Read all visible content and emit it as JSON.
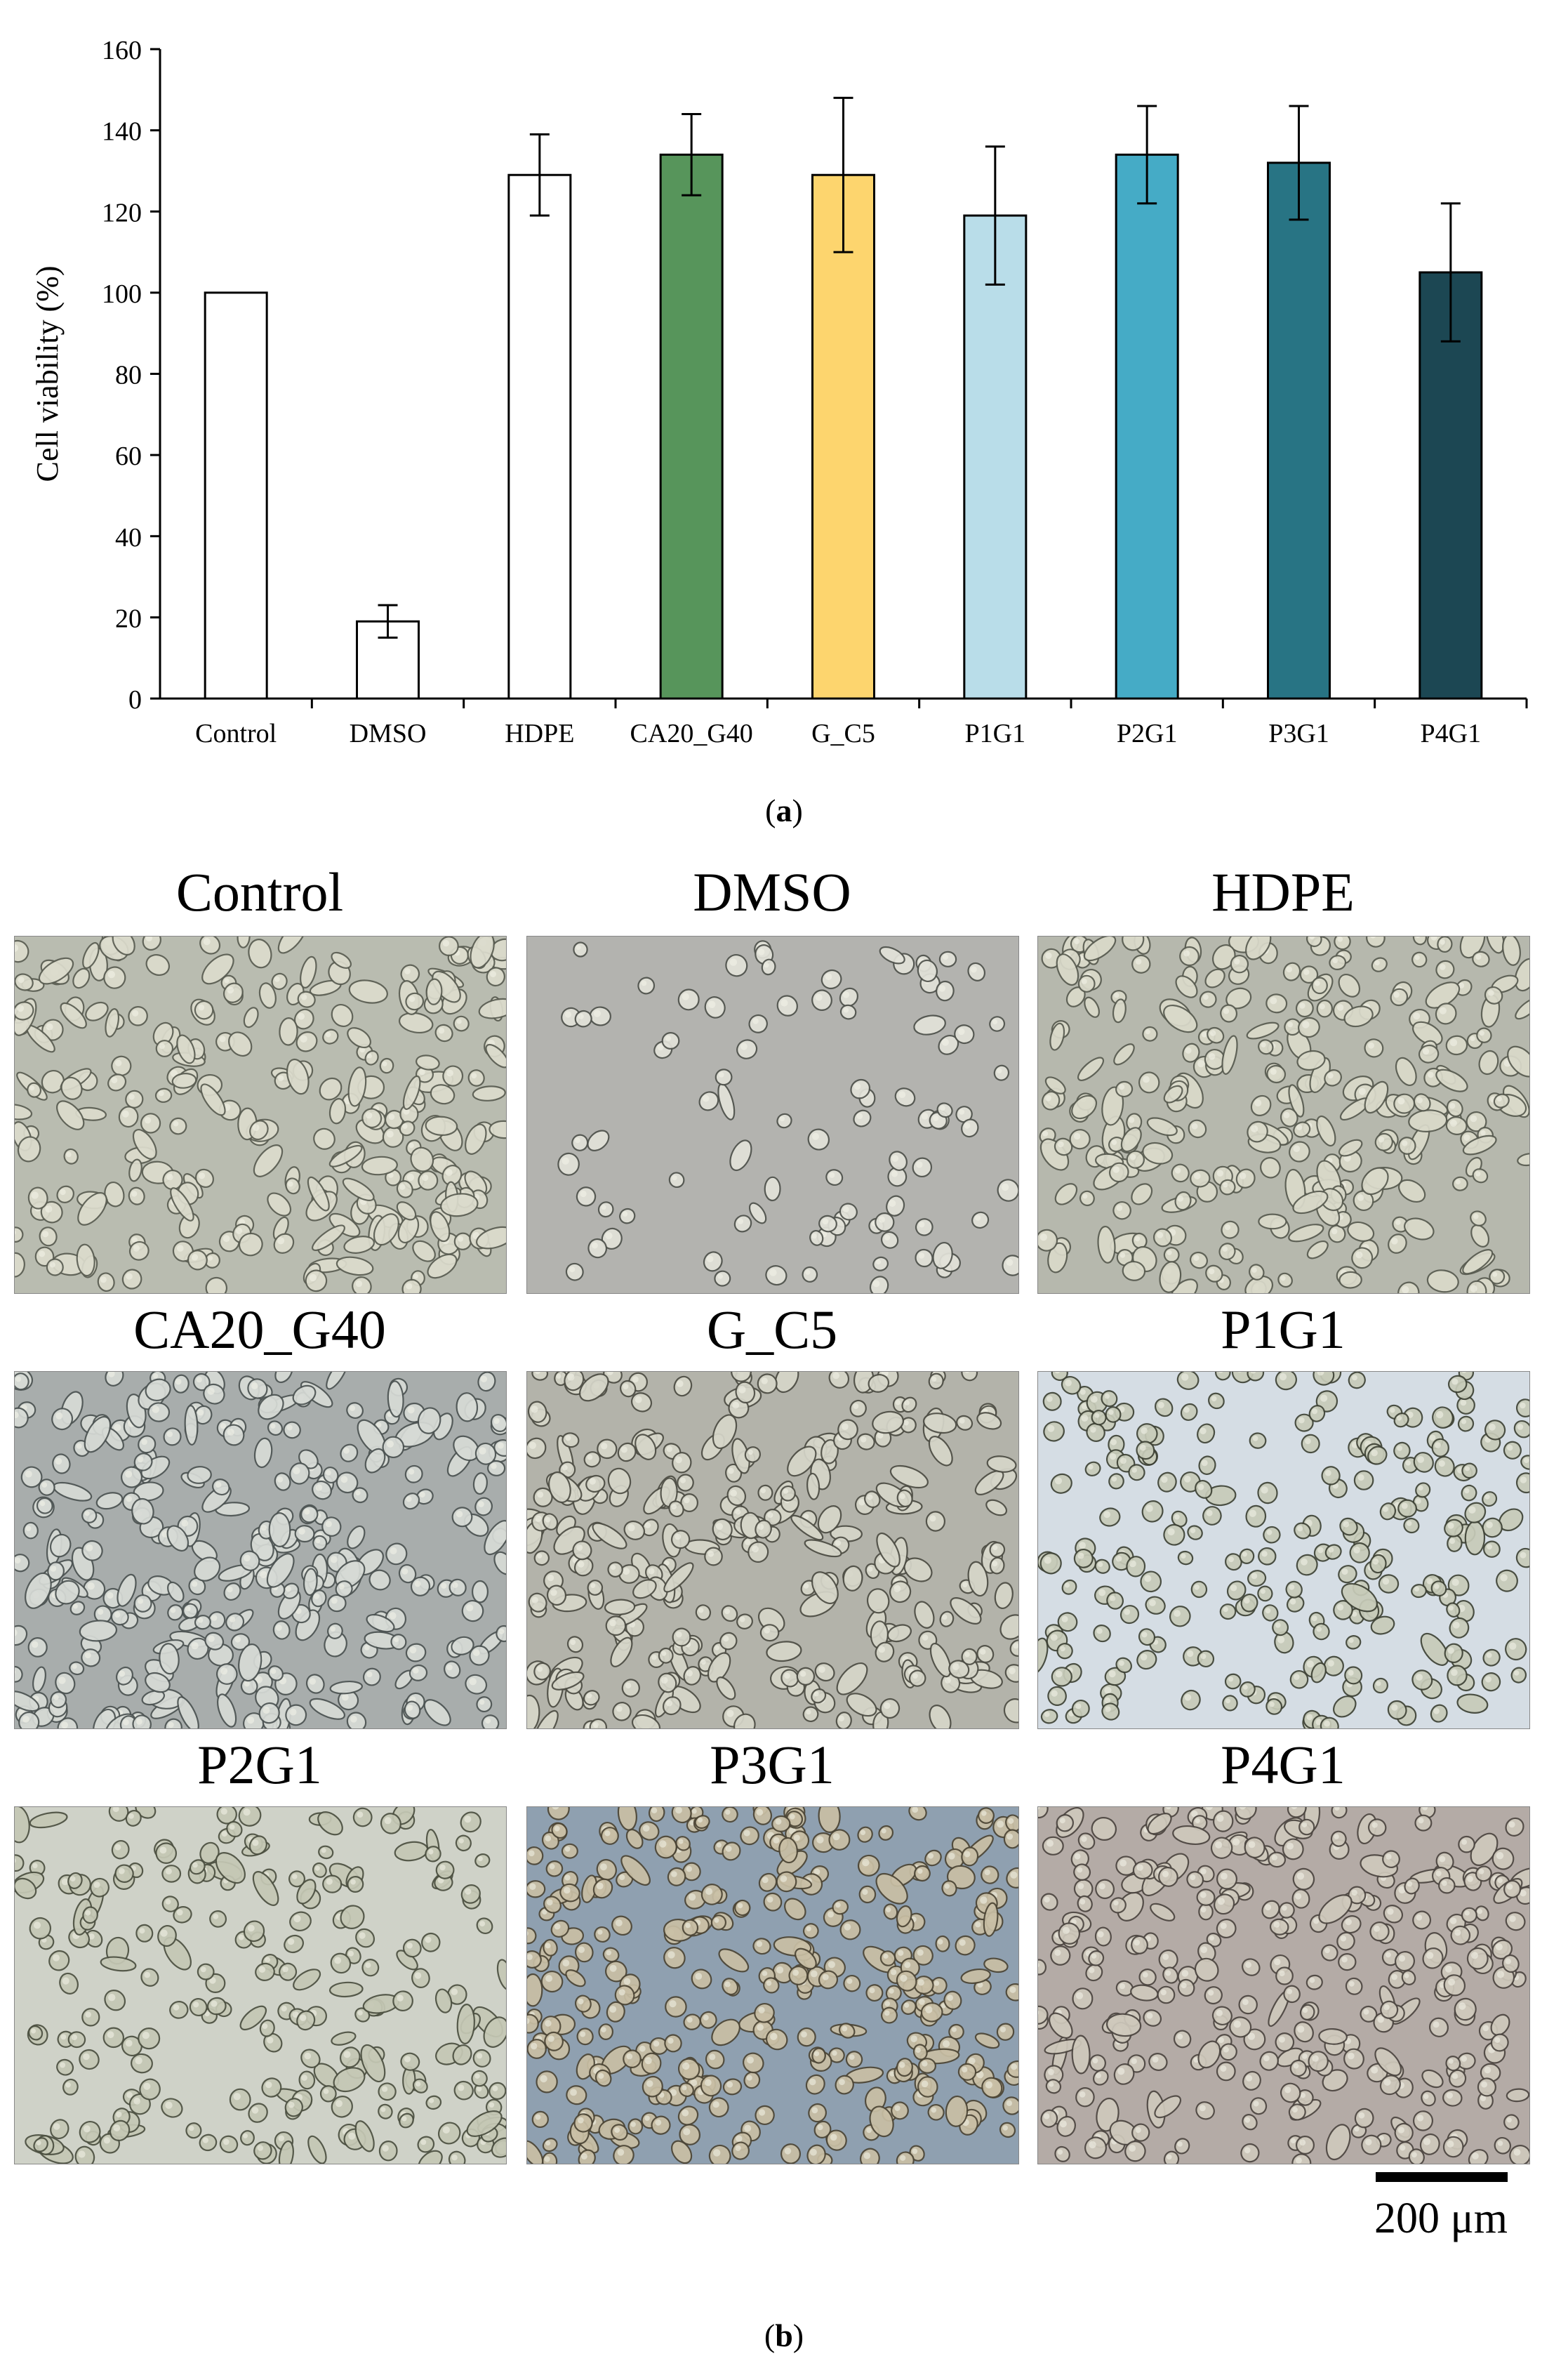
{
  "chart_data": {
    "type": "bar",
    "ylabel": "Cell  viability (%)",
    "xlabel": "",
    "ylim": [
      0,
      160
    ],
    "yticks": [
      "0",
      "20",
      "40",
      "60",
      "80",
      "100",
      "120",
      "140",
      "160"
    ],
    "grid": false,
    "categories": [
      "Control",
      "DMSO",
      "HDPE",
      "CA20_G40",
      "G_C5",
      "P1G1",
      "P2G1",
      "P3G1",
      "P4G1"
    ],
    "values": [
      100,
      19,
      129,
      134,
      129,
      119,
      134,
      132,
      105
    ],
    "errors": [
      null,
      4,
      10,
      10,
      19,
      17,
      12,
      14,
      17
    ],
    "colors": [
      "#ffffff",
      "#ffffff",
      "#ffffff",
      "#57955b",
      "#fdd56e",
      "#b9dde9",
      "#45abc6",
      "#287484",
      "#1c4753"
    ]
  },
  "panels": {
    "a_label": "a",
    "b_label": "b"
  },
  "micrographs": [
    {
      "title": "Control",
      "tone": "#b9bcb0",
      "cell": "#dcdccd",
      "edge": "#5a5d52",
      "density": 260,
      "spread": 0.55
    },
    {
      "title": "DMSO",
      "tone": "#b3b3af",
      "cell": "#e2e2d9",
      "edge": "#4f524c",
      "density": 90,
      "spread": 0.1
    },
    {
      "title": "HDPE",
      "tone": "#b6b8ad",
      "cell": "#dadaca",
      "edge": "#585b50",
      "density": 270,
      "spread": 0.45
    },
    {
      "title": "CA20_G40",
      "tone": "#a8adac",
      "cell": "#d7dbd6",
      "edge": "#4c5352",
      "density": 300,
      "spread": 0.45
    },
    {
      "title": "G_C5",
      "tone": "#b3b3aa",
      "cell": "#d6d6c9",
      "edge": "#4d4d44",
      "density": 280,
      "spread": 0.4
    },
    {
      "title": "P1G1",
      "tone": "#d5dde4",
      "cell": "#c7cbb9",
      "edge": "#3e4235",
      "density": 230,
      "spread": 0.05
    },
    {
      "title": "P2G1",
      "tone": "#cfd2c8",
      "cell": "#c5c8b5",
      "edge": "#4b4f40",
      "density": 220,
      "spread": 0.25
    },
    {
      "title": "P3G1",
      "tone": "#8fa0b0",
      "cell": "#c9bfa5",
      "edge": "#4c4535",
      "density": 320,
      "spread": 0.2
    },
    {
      "title": "P4G1",
      "tone": "#b4aba6",
      "cell": "#cfc9bc",
      "edge": "#4c4641",
      "density": 290,
      "spread": 0.2
    }
  ],
  "scale_bar": {
    "label": "200 μm"
  }
}
